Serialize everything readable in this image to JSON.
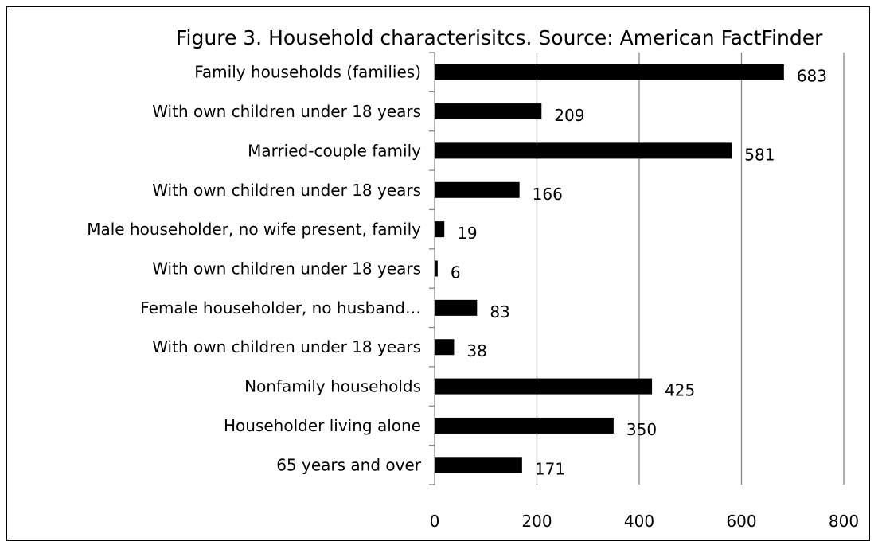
{
  "chart_data": {
    "type": "bar",
    "orientation": "horizontal",
    "title": "Figure 3. Household characterisitcs. Source: American FactFinder",
    "xlabel": "",
    "ylabel": "",
    "categories": [
      "Family households (families)",
      "With own children under 18 years",
      "Married-couple family",
      "With own children under 18 years",
      "Male householder, no wife present, family",
      "With own children under 18 years",
      "Female householder, no husband…",
      "With own children under 18 years",
      "Nonfamily households",
      "Householder living alone",
      "65 years and over"
    ],
    "values": [
      683,
      209,
      581,
      166,
      19,
      6,
      83,
      38,
      425,
      350,
      171
    ],
    "xlim": [
      0,
      800
    ],
    "xticks": [
      0,
      200,
      400,
      600,
      800
    ],
    "grid": true,
    "data_labels": true,
    "legend": "none",
    "bar_color": "#000000",
    "grid_color": "#868686"
  }
}
